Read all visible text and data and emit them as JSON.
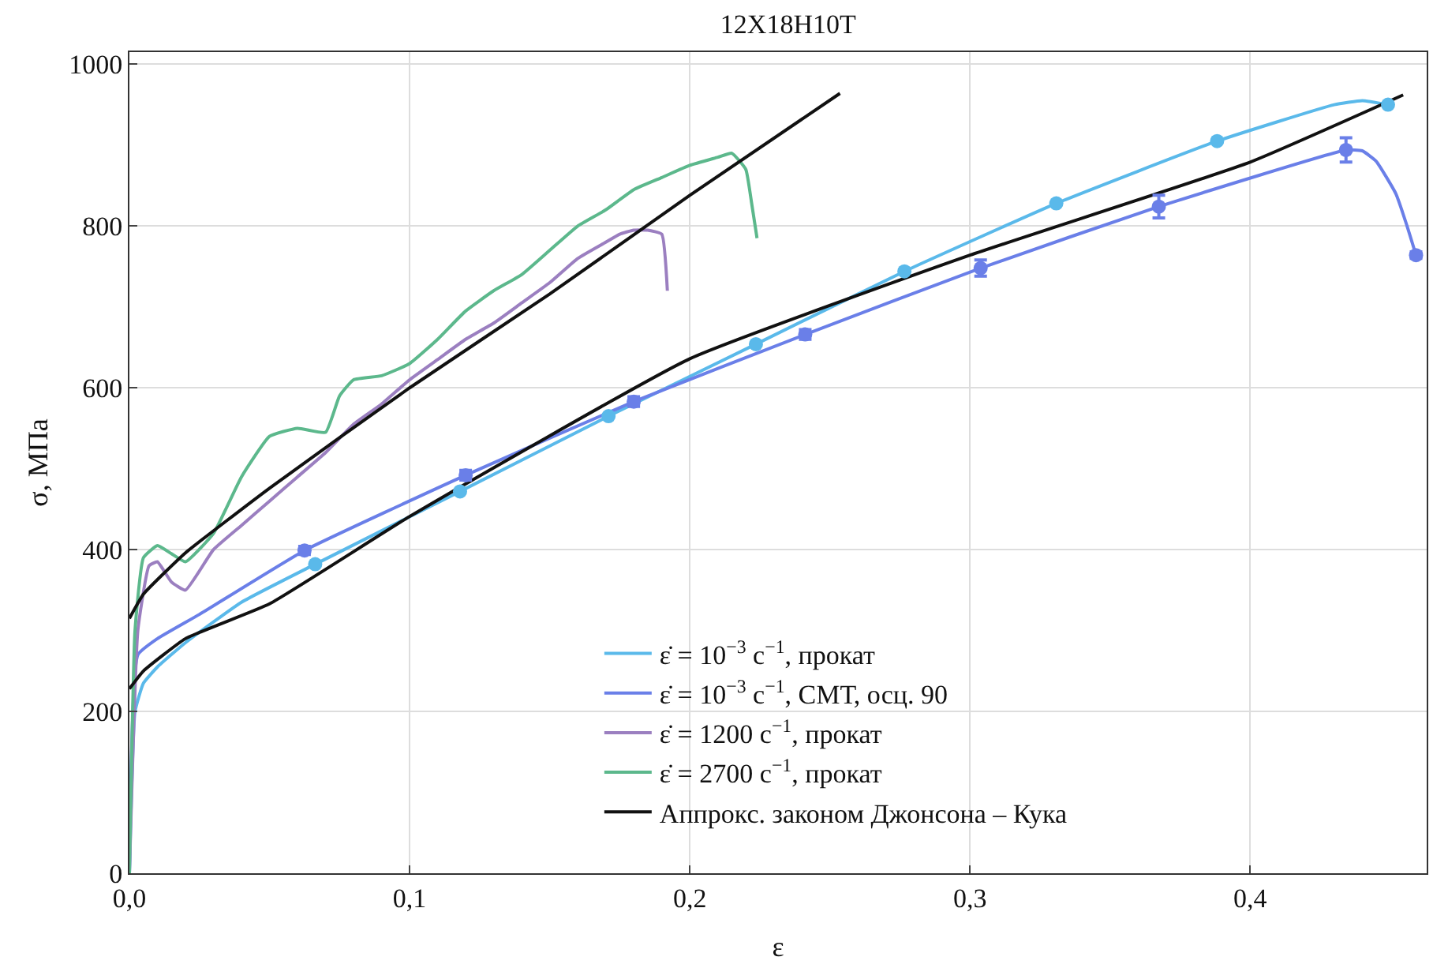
{
  "chart_data": {
    "type": "line",
    "title": "12X18H10T",
    "xlabel": "ε",
    "ylabel": "σ, МПа",
    "xlim": [
      0,
      0.463
    ],
    "ylim": [
      0,
      1015
    ],
    "xticks": [
      {
        "value": 0,
        "label": "0,0"
      },
      {
        "value": 0.1,
        "label": "0,1"
      },
      {
        "value": 0.2,
        "label": "0,2"
      },
      {
        "value": 0.3,
        "label": "0,3"
      },
      {
        "value": 0.4,
        "label": "0,4"
      }
    ],
    "yticks": [
      0,
      200,
      400,
      600,
      800,
      1000
    ],
    "grid": true,
    "legend": "bottom",
    "line_style": "solid",
    "series": [
      {
        "name": "ε̇ = 10$^{−3}$ с$^{−1}$, прокат",
        "color": "#5ab9ea",
        "x": [
          0,
          0.002,
          0.005,
          0.01,
          0.02,
          0.04,
          0.0663,
          0.118,
          0.171,
          0.2236,
          0.2766,
          0.3308,
          0.3882,
          0.43,
          0.44,
          0.4492
        ],
        "values": [
          0,
          200,
          235,
          255,
          285,
          335,
          382,
          472,
          565,
          654,
          744,
          828,
          905,
          950,
          955,
          950
        ]
      },
      {
        "name": "ε̇ = 10$^{−3}$ с$^{−1}$, СМТ, осц. 90",
        "color": "#6a7fe8",
        "x": [
          0,
          0.003,
          0.01,
          0.025,
          0.0625,
          0.12,
          0.18,
          0.2412,
          0.3038,
          0.3674,
          0.4342,
          0.44,
          0.445,
          0.452,
          0.456,
          0.4592
        ],
        "values": [
          0,
          270,
          290,
          320,
          399,
          492,
          583,
          666,
          748,
          824,
          894,
          893,
          880,
          840,
          800,
          764
        ]
      },
      {
        "name": "ε̇ = 1200 с$^{−1}$, прокат",
        "color": "#9b7fc0",
        "x": [
          0,
          0.003,
          0.007,
          0.01,
          0.015,
          0.02,
          0.03,
          0.04,
          0.05,
          0.06,
          0.07,
          0.08,
          0.09,
          0.1,
          0.11,
          0.12,
          0.13,
          0.14,
          0.15,
          0.16,
          0.17,
          0.175,
          0.18,
          0.185,
          0.19,
          0.192
        ],
        "values": [
          0,
          300,
          380,
          385,
          360,
          350,
          400,
          430,
          460,
          490,
          520,
          555,
          580,
          610,
          635,
          660,
          680,
          705,
          730,
          760,
          780,
          790,
          795,
          795,
          790,
          720
        ]
      },
      {
        "name": "ε̇ = 2700 с$^{−1}$, прокат",
        "color": "#5cb88c",
        "x": [
          0,
          0.002,
          0.005,
          0.01,
          0.015,
          0.02,
          0.03,
          0.04,
          0.05,
          0.06,
          0.07,
          0.075,
          0.08,
          0.09,
          0.1,
          0.11,
          0.12,
          0.13,
          0.14,
          0.15,
          0.16,
          0.17,
          0.18,
          0.19,
          0.2,
          0.21,
          0.215,
          0.22,
          0.222,
          0.224
        ],
        "values": [
          0,
          300,
          390,
          405,
          395,
          385,
          420,
          490,
          540,
          550,
          545,
          590,
          610,
          615,
          630,
          660,
          695,
          720,
          740,
          770,
          800,
          820,
          845,
          860,
          875,
          885,
          890,
          870,
          830,
          785
        ]
      },
      {
        "name": "Аппрокс. законом Джонсона – Кука",
        "color": "#111111",
        "x": [
          0,
          0.005,
          0.02,
          0.05,
          0.1,
          0.2,
          0.3,
          0.4,
          0.4546
        ],
        "values": [
          228,
          250,
          290,
          333,
          441,
          636,
          764,
          879,
          962
        ]
      },
      {
        "color": "#111111",
        "x": [
          0,
          0.005,
          0.02,
          0.05,
          0.1,
          0.15,
          0.2,
          0.2536
        ],
        "values": [
          315,
          345,
          396,
          476,
          600,
          716,
          838,
          964
        ]
      },
      {
        "color": "#5ab9ea",
        "type": "scatter",
        "marker": "circle",
        "x": [
          0.0663,
          0.118,
          0.171,
          0.2236,
          0.2766,
          0.3308,
          0.3882,
          0.4492
        ],
        "values": [
          382,
          472,
          565,
          654,
          744,
          828,
          905,
          950
        ]
      },
      {
        "color": "#6a7fe8",
        "type": "scatter",
        "marker": "circle",
        "x": [
          0.0625,
          0.12,
          0.18,
          0.2412,
          0.3038,
          0.3674,
          0.4342,
          0.4592
        ],
        "values": [
          399,
          492,
          583,
          666,
          748,
          824,
          894,
          764
        ],
        "errors": [
          5,
          6,
          6,
          6,
          10,
          14,
          15,
          4
        ]
      }
    ]
  }
}
